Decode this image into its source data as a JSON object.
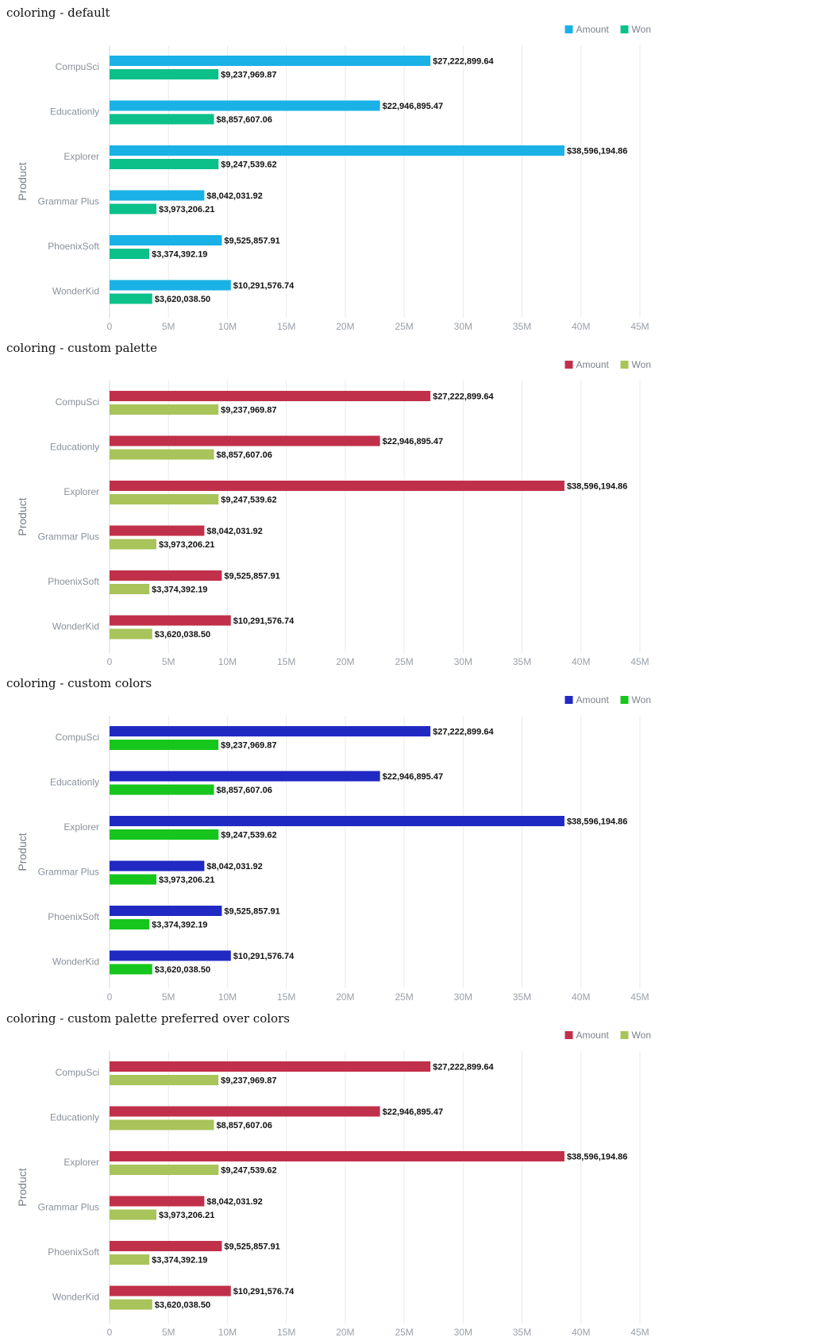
{
  "chart_data": [
    {
      "type": "bar",
      "orientation": "horizontal",
      "title": "coloring - default",
      "ylabel": "Product",
      "xlabel": "",
      "categories": [
        "CompuSci",
        "Educationly",
        "Explorer",
        "Grammar Plus",
        "PhoenixSoft",
        "WonderKid"
      ],
      "series": [
        {
          "name": "Amount",
          "color": "#1ab1e6",
          "values": [
            27222899.64,
            22946895.47,
            38596194.86,
            8042031.92,
            9525857.91,
            10291576.74
          ],
          "labels": [
            "$27,222,899.64",
            "$22,946,895.47",
            "$38,596,194.86",
            "$8,042,031.92",
            "$9,525,857.91",
            "$10,291,576.74"
          ]
        },
        {
          "name": "Won",
          "color": "#0cc08a",
          "values": [
            9237969.87,
            8857607.06,
            9247539.62,
            3973206.21,
            3374392.19,
            3620038.5
          ],
          "labels": [
            "$9,237,969.87",
            "$8,857,607.06",
            "$9,247,539.62",
            "$3,973,206.21",
            "$3,374,392.19",
            "$3,620,038.50"
          ]
        }
      ],
      "xlim": [
        0,
        45000000
      ],
      "x_ticks": [
        0,
        5000000,
        10000000,
        15000000,
        20000000,
        25000000,
        30000000,
        35000000,
        40000000,
        45000000
      ],
      "x_tick_labels": [
        "0",
        "5M",
        "10M",
        "15M",
        "20M",
        "25M",
        "30M",
        "35M",
        "40M",
        "45M"
      ],
      "grid": "vertical",
      "legend_position": "top-right"
    },
    {
      "type": "bar",
      "orientation": "horizontal",
      "title": "coloring - custom palette",
      "ylabel": "Product",
      "xlabel": "",
      "categories": [
        "CompuSci",
        "Educationly",
        "Explorer",
        "Grammar Plus",
        "PhoenixSoft",
        "WonderKid"
      ],
      "series": [
        {
          "name": "Amount",
          "color": "#c1304a",
          "values": [
            27222899.64,
            22946895.47,
            38596194.86,
            8042031.92,
            9525857.91,
            10291576.74
          ],
          "labels": [
            "$27,222,899.64",
            "$22,946,895.47",
            "$38,596,194.86",
            "$8,042,031.92",
            "$9,525,857.91",
            "$10,291,576.74"
          ]
        },
        {
          "name": "Won",
          "color": "#a8c45a",
          "values": [
            9237969.87,
            8857607.06,
            9247539.62,
            3973206.21,
            3374392.19,
            3620038.5
          ],
          "labels": [
            "$9,237,969.87",
            "$8,857,607.06",
            "$9,247,539.62",
            "$3,973,206.21",
            "$3,374,392.19",
            "$3,620,038.50"
          ]
        }
      ],
      "xlim": [
        0,
        45000000
      ],
      "x_ticks": [
        0,
        5000000,
        10000000,
        15000000,
        20000000,
        25000000,
        30000000,
        35000000,
        40000000,
        45000000
      ],
      "x_tick_labels": [
        "0",
        "5M",
        "10M",
        "15M",
        "20M",
        "25M",
        "30M",
        "35M",
        "40M",
        "45M"
      ],
      "grid": "vertical",
      "legend_position": "top-right"
    },
    {
      "type": "bar",
      "orientation": "horizontal",
      "title": "coloring - custom colors",
      "ylabel": "Product",
      "xlabel": "",
      "categories": [
        "CompuSci",
        "Educationly",
        "Explorer",
        "Grammar Plus",
        "PhoenixSoft",
        "WonderKid"
      ],
      "series": [
        {
          "name": "Amount",
          "color": "#2129c3",
          "values": [
            27222899.64,
            22946895.47,
            38596194.86,
            8042031.92,
            9525857.91,
            10291576.74
          ],
          "labels": [
            "$27,222,899.64",
            "$22,946,895.47",
            "$38,596,194.86",
            "$8,042,031.92",
            "$9,525,857.91",
            "$10,291,576.74"
          ]
        },
        {
          "name": "Won",
          "color": "#16c61c",
          "values": [
            9237969.87,
            8857607.06,
            9247539.62,
            3973206.21,
            3374392.19,
            3620038.5
          ],
          "labels": [
            "$9,237,969.87",
            "$8,857,607.06",
            "$9,247,539.62",
            "$3,973,206.21",
            "$3,374,392.19",
            "$3,620,038.50"
          ]
        }
      ],
      "xlim": [
        0,
        45000000
      ],
      "x_ticks": [
        0,
        5000000,
        10000000,
        15000000,
        20000000,
        25000000,
        30000000,
        35000000,
        40000000,
        45000000
      ],
      "x_tick_labels": [
        "0",
        "5M",
        "10M",
        "15M",
        "20M",
        "25M",
        "30M",
        "35M",
        "40M",
        "45M"
      ],
      "grid": "vertical",
      "legend_position": "top-right"
    },
    {
      "type": "bar",
      "orientation": "horizontal",
      "title": "coloring - custom palette preferred over colors",
      "ylabel": "Product",
      "xlabel": "",
      "categories": [
        "CompuSci",
        "Educationly",
        "Explorer",
        "Grammar Plus",
        "PhoenixSoft",
        "WonderKid"
      ],
      "series": [
        {
          "name": "Amount",
          "color": "#c1304a",
          "values": [
            27222899.64,
            22946895.47,
            38596194.86,
            8042031.92,
            9525857.91,
            10291576.74
          ],
          "labels": [
            "$27,222,899.64",
            "$22,946,895.47",
            "$38,596,194.86",
            "$8,042,031.92",
            "$9,525,857.91",
            "$10,291,576.74"
          ]
        },
        {
          "name": "Won",
          "color": "#a8c45a",
          "values": [
            9237969.87,
            8857607.06,
            9247539.62,
            3973206.21,
            3374392.19,
            3620038.5
          ],
          "labels": [
            "$9,237,969.87",
            "$8,857,607.06",
            "$9,247,539.62",
            "$3,973,206.21",
            "$3,374,392.19",
            "$3,620,038.50"
          ]
        }
      ],
      "xlim": [
        0,
        45000000
      ],
      "x_ticks": [
        0,
        5000000,
        10000000,
        15000000,
        20000000,
        25000000,
        30000000,
        35000000,
        40000000,
        45000000
      ],
      "x_tick_labels": [
        "0",
        "5M",
        "10M",
        "15M",
        "20M",
        "25M",
        "30M",
        "35M",
        "40M",
        "45M"
      ],
      "grid": "vertical",
      "legend_position": "top-right"
    }
  ]
}
